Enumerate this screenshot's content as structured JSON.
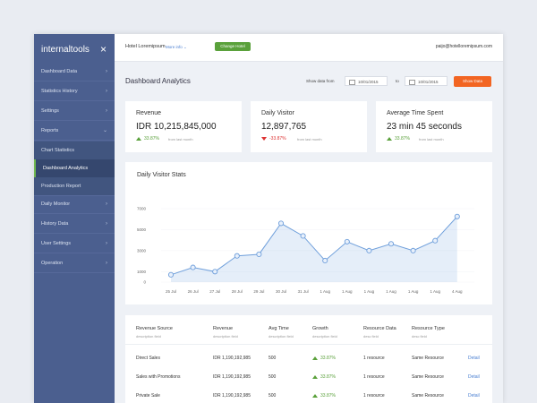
{
  "sidebar": {
    "brand": "internaltools",
    "close": "×",
    "items": [
      {
        "label": "Dashboard Data",
        "icon": "›"
      },
      {
        "label": "Statistics History",
        "icon": "›"
      },
      {
        "label": "Settings",
        "icon": "›"
      },
      {
        "label": "Reports",
        "icon": "⌄",
        "children": [
          "Chart Statistics",
          "Dashboard Analytics",
          "Production Report"
        ]
      },
      {
        "label": "Daily Monitor",
        "icon": "›"
      },
      {
        "label": "History Data",
        "icon": "›"
      },
      {
        "label": "User Settings",
        "icon": "›"
      },
      {
        "label": "Operation",
        "icon": "›"
      }
    ],
    "active": "Dashboard Analytics"
  },
  "header": {
    "hotel": "Hotel Loremipsum",
    "more": "More info ⌄",
    "button": "Change Hotel",
    "email": "paijo@hotelloremipsum.com"
  },
  "page": {
    "title": "Dashboard Analytics",
    "from_label": "Show data from",
    "from": "10/01/2015",
    "to_label": "to",
    "to": "10/01/2015",
    "button": "Show Data"
  },
  "cards": [
    {
      "title": "Revenue",
      "value": "IDR 10,215,845,000",
      "change": "33.87%",
      "note": "from last month"
    },
    {
      "title": "Daily Visitor",
      "value": "12,897,765",
      "change": "-33.87%",
      "note": "from last month"
    },
    {
      "title": "Average Time Spent",
      "value": "23 min 45 seconds",
      "change": "33.87%",
      "note": "from last month"
    }
  ],
  "chart": {
    "type": "area",
    "title": "Daily Visitor Stats",
    "color": "#6f9fdb",
    "categories": [
      "25 Jul",
      "26 Jul",
      "27 Jul",
      "28 Jul",
      "29 Jul",
      "30 Jul",
      "31 Jul",
      "1 Aug",
      "1 Aug",
      "1 Aug",
      "1 Aug",
      "1 Aug",
      "1 Aug",
      "4 Aug"
    ],
    "values": [
      700,
      1400,
      1000,
      2500,
      2650,
      5600,
      4400,
      2050,
      3850,
      3000,
      3650,
      3000,
      3950,
      6250
    ],
    "ylim": [
      0,
      7000
    ],
    "yticks": [
      0,
      1000,
      3000,
      5000,
      7000
    ]
  },
  "table": {
    "headers": [
      [
        "Revenue Source",
        "description field"
      ],
      [
        "Revenue",
        "description field"
      ],
      [
        "Avg Time",
        "description field"
      ],
      [
        "Growth",
        "description field"
      ],
      [
        "Resource Data",
        "desc field"
      ],
      [
        "Resource Type",
        "desc field"
      ]
    ],
    "rows": [
      [
        "Direct Sales",
        "IDR 1,190,192,985",
        "500",
        "33.87%",
        "1 resource",
        "Same Resource",
        "Detail"
      ],
      [
        "Sales with Promotions",
        "IDR 1,190,192,985",
        "500",
        "33.87%",
        "1 resource",
        "Same Resource",
        "Detail"
      ],
      [
        "Private Sale",
        "IDR 1,190,192,985",
        "500",
        "33.87%",
        "1 resource",
        "Same Resource",
        "Detail"
      ]
    ]
  }
}
